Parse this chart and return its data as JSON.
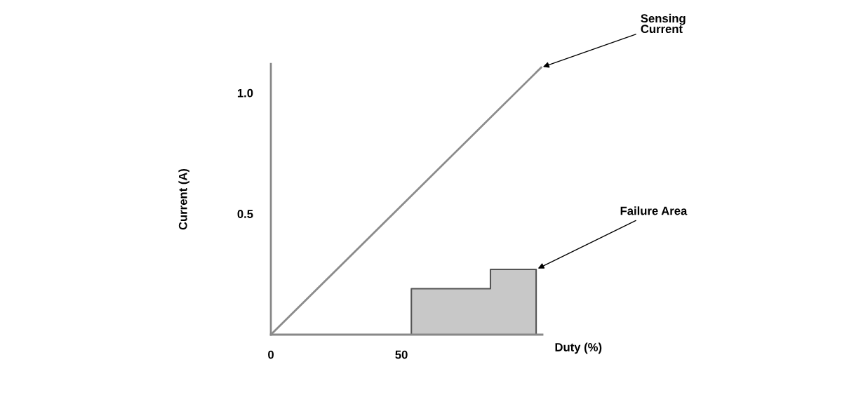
{
  "chart_data": {
    "type": "area",
    "xlabel": "Duty (%)",
    "ylabel": "Current (A)",
    "xlim": [
      0,
      104
    ],
    "ylim": [
      0,
      1.12
    ],
    "xticks": [
      0,
      50
    ],
    "yticks": [
      0.5,
      {
        "value": 1.0,
        "label": "1.0"
      }
    ],
    "series": [
      {
        "type": "line",
        "color": "#8c8c8c",
        "x": [
          0,
          103.5
        ],
        "values": [
          0,
          1.105
        ]
      },
      {
        "color": "#c8c8c8",
        "x": [
          53.8,
          84.1,
          84.1,
          101.6
        ],
        "values": [
          0.19,
          0.19,
          0.27,
          0.27
        ]
      }
    ],
    "annotations": [
      {
        "text": "Sensing\nCurrent",
        "x": 103.5,
        "y": 1.105
      },
      {
        "text": "Failure Area",
        "x": 101.6,
        "y": 0.27
      }
    ],
    "grid": false,
    "legend": false
  }
}
